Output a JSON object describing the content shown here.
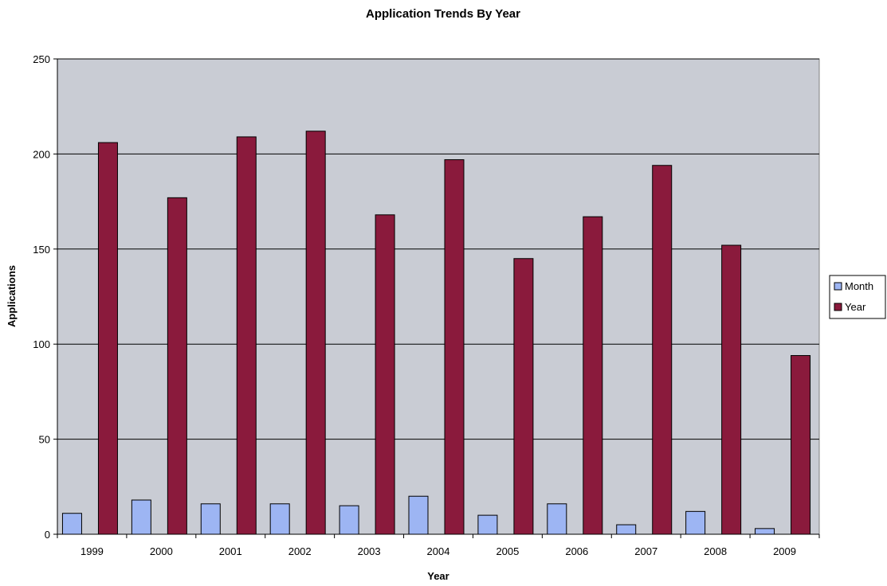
{
  "chart_data": {
    "type": "bar",
    "title": "Application Trends By Year",
    "xlabel": "Year",
    "ylabel": "Applications",
    "categories": [
      "1999",
      "2000",
      "2001",
      "2002",
      "2003",
      "2004",
      "2005",
      "2006",
      "2007",
      "2008",
      "2009"
    ],
    "series": [
      {
        "name": "Month",
        "values": [
          11,
          18,
          16,
          16,
          15,
          20,
          10,
          16,
          5,
          12,
          3
        ],
        "color": "#9DB5F3"
      },
      {
        "name": "Year",
        "values": [
          206,
          177,
          209,
          212,
          168,
          197,
          145,
          167,
          194,
          152,
          94
        ],
        "color": "#8A1A3C"
      }
    ],
    "ylim": [
      0,
      250
    ],
    "yticks": [
      0,
      50,
      100,
      150,
      200,
      250
    ],
    "grid": true,
    "legend": "right",
    "plot_background": "#C9CCD4"
  }
}
